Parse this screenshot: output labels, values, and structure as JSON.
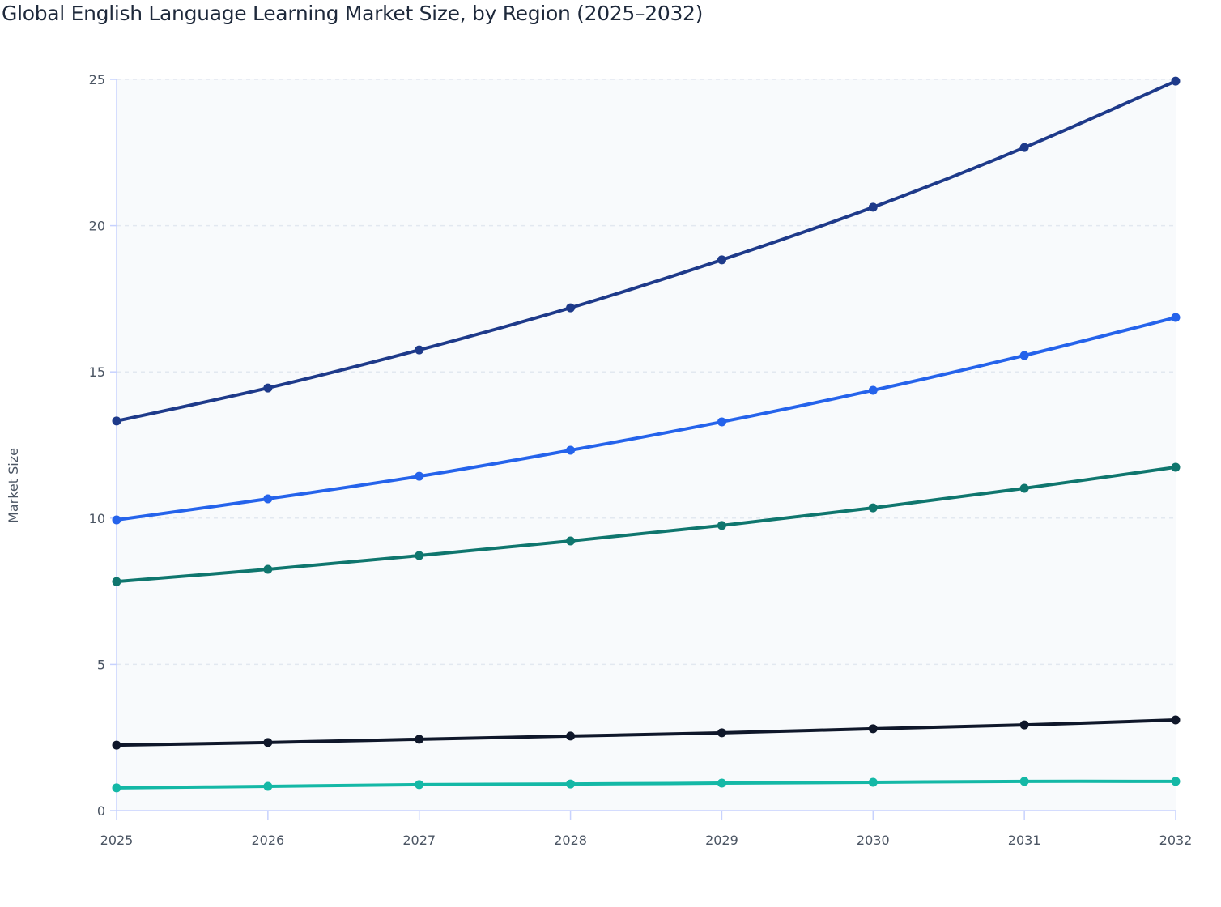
{
  "chart_data": {
    "type": "line",
    "title": "Global English Language Learning Market Size, by Region (2025–2032)",
    "xlabel": "",
    "ylabel": "Market Size",
    "x": [
      2025,
      2026,
      2027,
      2028,
      2029,
      2030,
      2031,
      2032
    ],
    "ylim": [
      0,
      25
    ],
    "yticks": [
      0,
      5,
      10,
      15,
      20,
      25
    ],
    "grid": true,
    "legend": "none",
    "series": [
      {
        "color": "#1e3a8a",
        "values": [
          13.32,
          14.45,
          15.75,
          17.19,
          18.83,
          20.63,
          22.67,
          24.94
        ]
      },
      {
        "color": "#2563eb",
        "values": [
          9.94,
          10.66,
          11.43,
          12.32,
          13.29,
          14.37,
          15.56,
          16.86
        ]
      },
      {
        "color": "#0f766e",
        "values": [
          7.83,
          8.25,
          8.72,
          9.22,
          9.75,
          10.35,
          11.02,
          11.74
        ]
      },
      {
        "color": "#0f172a",
        "values": [
          2.24,
          2.33,
          2.44,
          2.55,
          2.66,
          2.8,
          2.93,
          3.1
        ]
      },
      {
        "color": "#14b8a6",
        "values": [
          0.78,
          0.83,
          0.89,
          0.91,
          0.94,
          0.97,
          1.0,
          1.0
        ]
      }
    ]
  }
}
